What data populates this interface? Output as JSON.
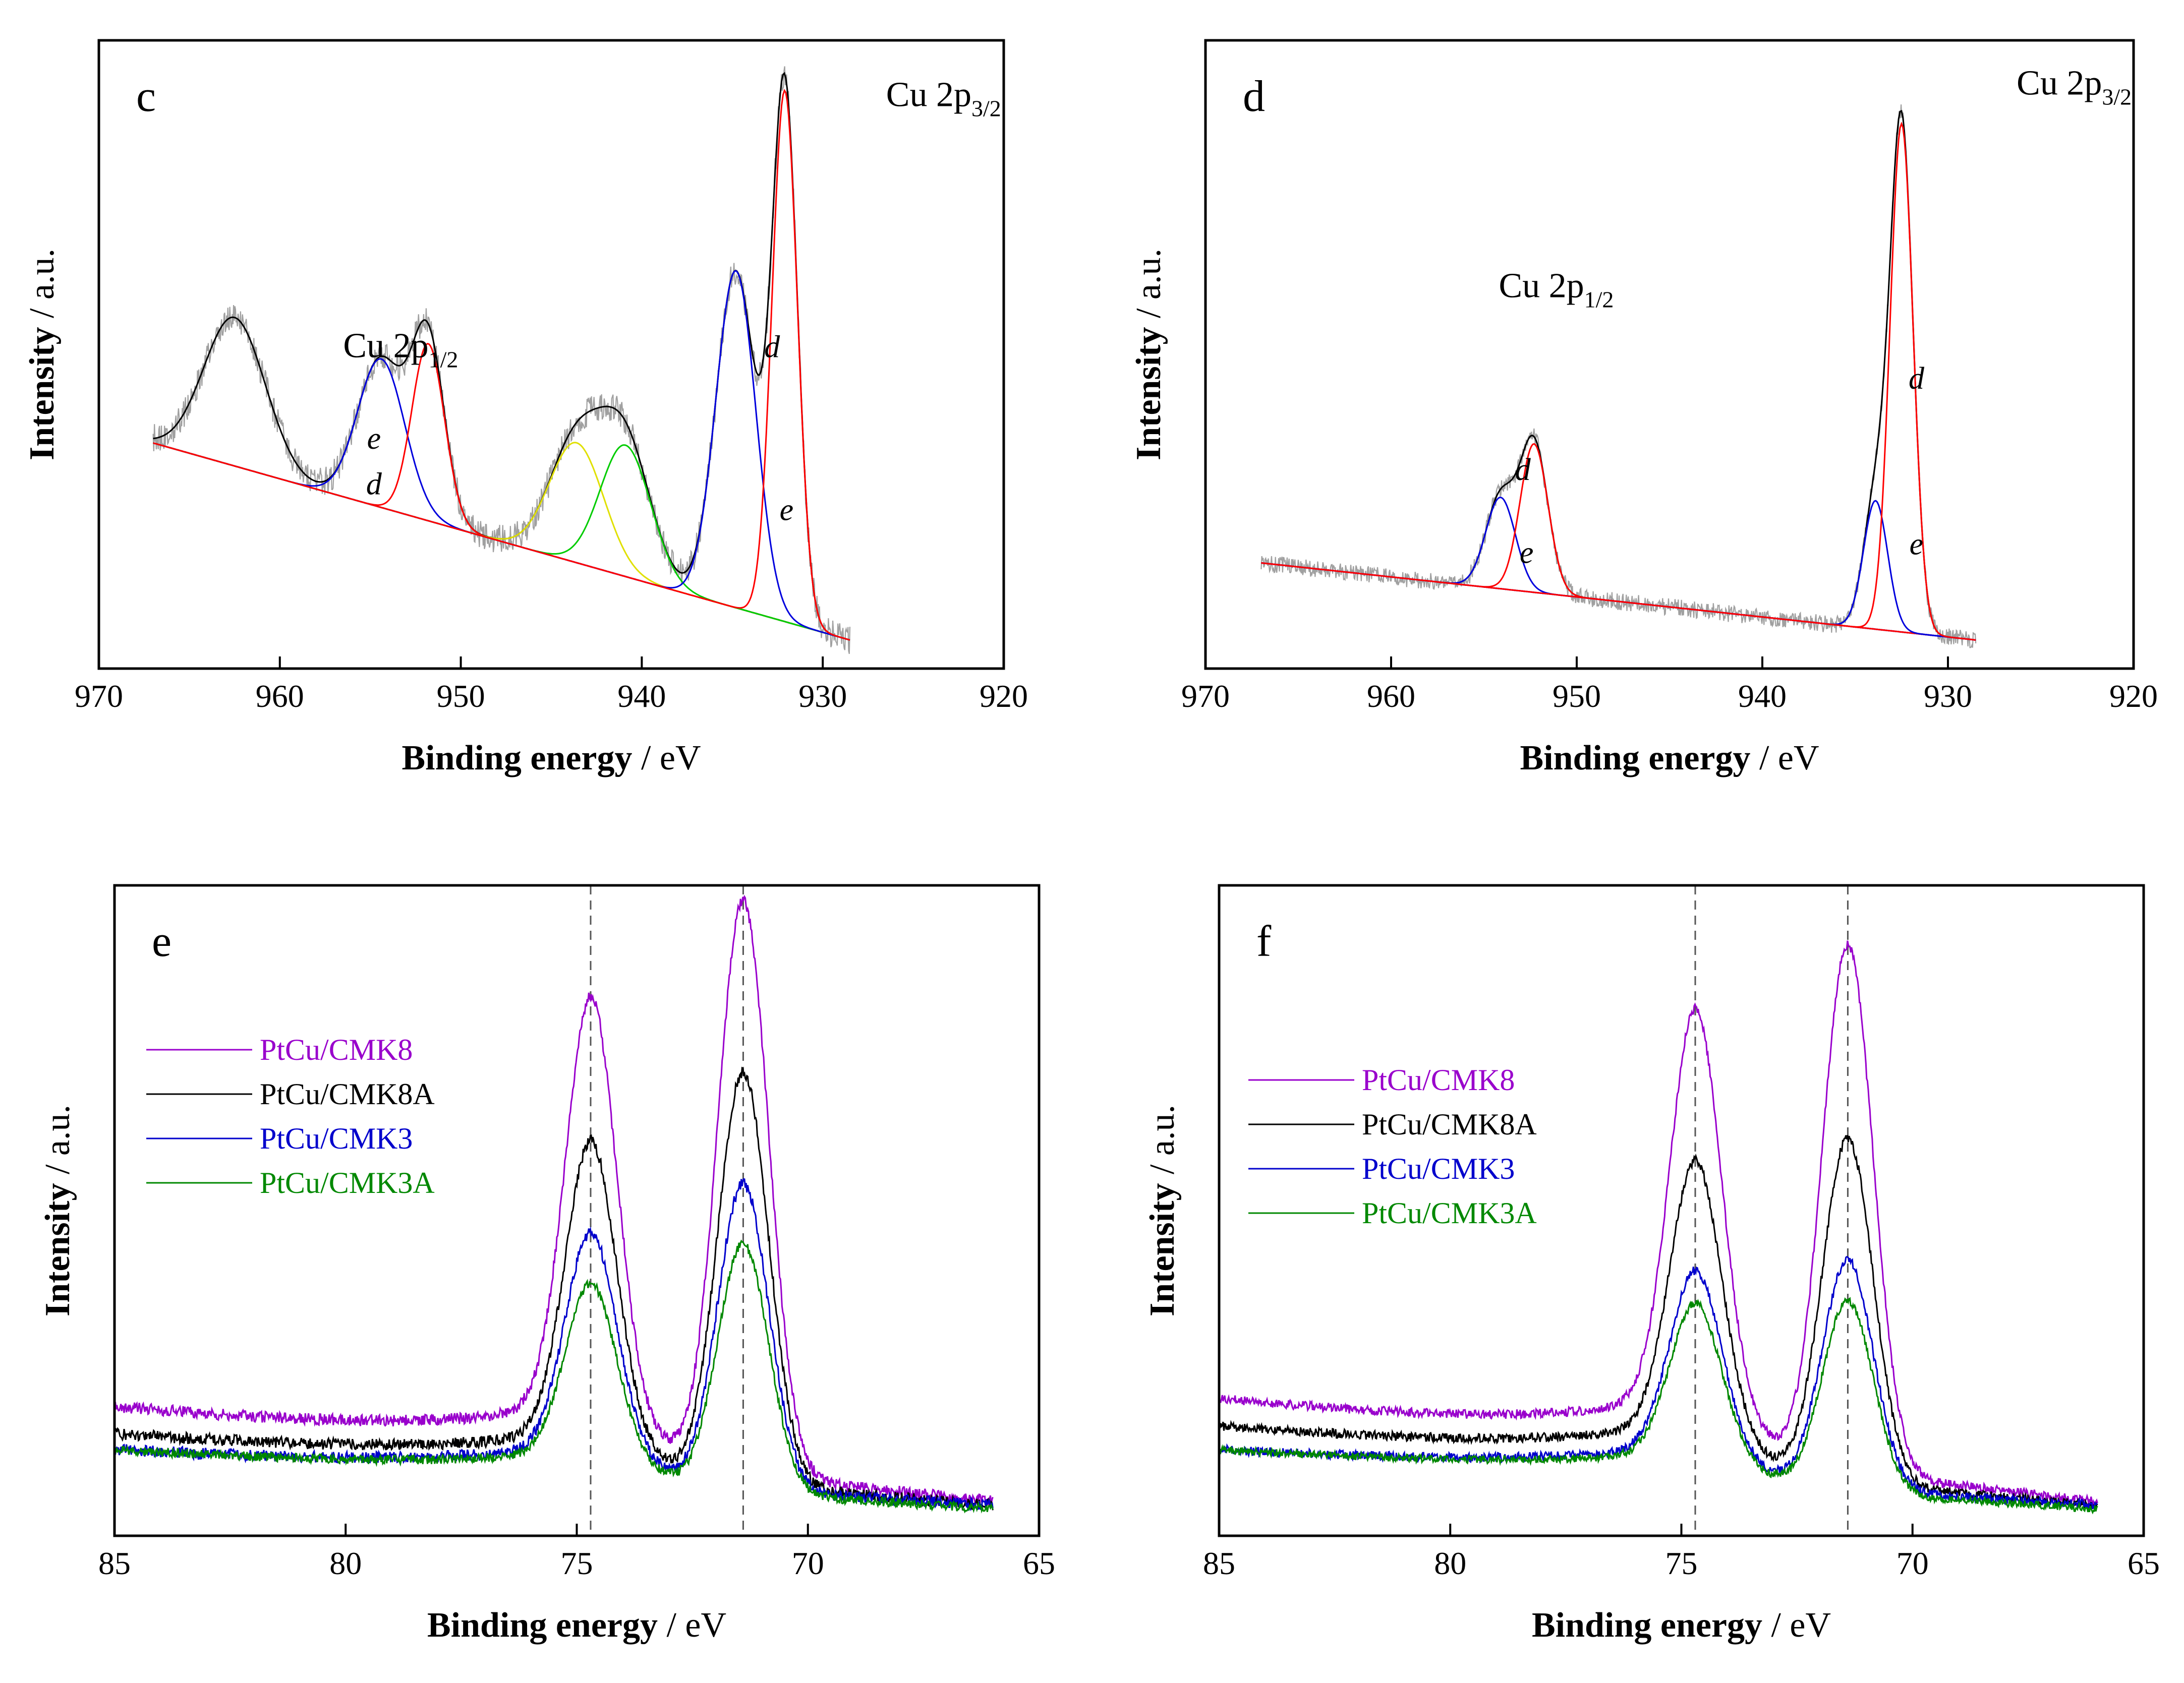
{
  "chart_data": [
    {
      "panel": "c",
      "type": "line",
      "xlabel_bold": "Binding energy",
      "xlabel_rest": " / eV",
      "ylabel_bold": "Intensity",
      "ylabel_rest": " / a.u.",
      "xlim": [
        970,
        920
      ],
      "xticks": [
        "970",
        "960",
        "950",
        "940",
        "930",
        "920"
      ],
      "peak_labels": [
        {
          "base": "Cu 2p",
          "sub": "1/2",
          "x": 956.5,
          "y": 1.04
        },
        {
          "base": "Cu 2p",
          "sub": "3/2",
          "x": 926.5,
          "y": 1.92
        }
      ],
      "series": [
        {
          "name": "raw",
          "color": "#a0a0a0",
          "noise": 0.05,
          "base": [
            967,
            0.74,
            928.5,
            0.05
          ],
          "peaks": [
            [
              962.5,
              0.52,
              1.7
            ],
            [
              954.4,
              0.52,
              1.3
            ],
            [
              951.8,
              0.62,
              0.9
            ],
            [
              943.6,
              0.42,
              1.5
            ],
            [
              940.9,
              0.46,
              1.4
            ],
            [
              934.8,
              1.18,
              1.1
            ],
            [
              932.1,
              1.86,
              0.7
            ]
          ]
        },
        {
          "name": "envelope",
          "color": "#000000",
          "base": [
            967,
            0.74,
            928.5,
            0.05
          ],
          "peaks": [
            [
              962.5,
              0.52,
              1.7
            ],
            [
              954.4,
              0.52,
              1.3
            ],
            [
              951.8,
              0.62,
              0.9
            ],
            [
              943.6,
              0.42,
              1.5
            ],
            [
              940.9,
              0.46,
              1.4
            ],
            [
              934.8,
              1.18,
              1.1
            ],
            [
              932.1,
              1.86,
              0.7
            ]
          ]
        },
        {
          "name": "baseline",
          "color": "#0000cc",
          "base": [
            967,
            0.74,
            928.5,
            0.05
          ],
          "peaks": []
        },
        {
          "name": "Cu2p1/2 e",
          "color": "#0000dd",
          "base": [
            967,
            0.74,
            928.5,
            0.05
          ],
          "peaks": [
            [
              954.4,
              0.52,
              1.3
            ]
          ]
        },
        {
          "name": "Cu2p1/2 d",
          "color": "#ff0000",
          "base": [
            967,
            0.74,
            928.5,
            0.05
          ],
          "peaks": [
            [
              951.8,
              0.62,
              0.9
            ]
          ]
        },
        {
          "name": "satellite 1",
          "color": "#e0e000",
          "base": [
            967,
            0.74,
            928.5,
            0.05
          ],
          "peaks": [
            [
              943.6,
              0.42,
              1.5
            ]
          ]
        },
        {
          "name": "satellite 2",
          "color": "#00cc00",
          "base": [
            967,
            0.74,
            928.5,
            0.05
          ],
          "peaks": [
            [
              940.9,
              0.46,
              1.4
            ]
          ]
        },
        {
          "name": "Cu2p3/2 e",
          "color": "#0000dd",
          "base": [
            967,
            0.74,
            928.5,
            0.05
          ],
          "peaks": [
            [
              934.8,
              1.18,
              1.1
            ]
          ]
        },
        {
          "name": "Cu2p3/2 d",
          "color": "#ff0000",
          "base": [
            967,
            0.74,
            928.5,
            0.05
          ],
          "peaks": [
            [
              932.1,
              1.86,
              0.7
            ]
          ]
        }
      ],
      "component_labels": [
        {
          "text": "e",
          "x": 954.8,
          "y": 0.72
        },
        {
          "text": "d",
          "x": 954.8,
          "y": 0.56
        },
        {
          "text": "d",
          "x": 932.8,
          "y": 1.04
        },
        {
          "text": "e",
          "x": 932.0,
          "y": 0.47
        }
      ]
    },
    {
      "panel": "d",
      "type": "line",
      "xlabel_bold": "Binding energy",
      "xlabel_rest": " / eV",
      "ylabel_bold": "Intensity",
      "ylabel_rest": " / a.u.",
      "xlim": [
        970,
        920
      ],
      "xticks": [
        "970",
        "960",
        "950",
        "940",
        "930",
        "920"
      ],
      "peak_labels": [
        {
          "base": "Cu 2p",
          "sub": "1/2",
          "x": 954.2,
          "y": 1.25
        },
        {
          "base": "Cu 2p",
          "sub": "3/2",
          "x": 926.3,
          "y": 1.96
        }
      ],
      "series": [
        {
          "name": "raw",
          "color": "#a0a0a0",
          "noise": 0.03,
          "base": [
            967,
            0.32,
            928.5,
            0.05
          ],
          "peaks": [
            [
              954.1,
              0.32,
              0.8
            ],
            [
              952.3,
              0.52,
              0.75
            ],
            [
              933.9,
              0.45,
              0.65
            ],
            [
              932.5,
              1.78,
              0.62
            ]
          ]
        },
        {
          "name": "envelope",
          "color": "#000000",
          "base": [
            967,
            0.32,
            928.5,
            0.05
          ],
          "peaks": [
            [
              954.1,
              0.32,
              0.8
            ],
            [
              952.3,
              0.52,
              0.75
            ],
            [
              933.9,
              0.45,
              0.65
            ],
            [
              932.5,
              1.78,
              0.62
            ]
          ]
        },
        {
          "name": "baseline",
          "color": "#0000cc",
          "base": [
            967,
            0.32,
            928.5,
            0.05
          ],
          "peaks": []
        },
        {
          "name": "Cu2p1/2 e",
          "color": "#0000dd",
          "base": [
            967,
            0.32,
            928.5,
            0.05
          ],
          "peaks": [
            [
              954.1,
              0.32,
              0.8
            ]
          ]
        },
        {
          "name": "Cu2p1/2 d",
          "color": "#ff0000",
          "base": [
            967,
            0.32,
            928.5,
            0.05
          ],
          "peaks": [
            [
              952.3,
              0.52,
              0.75
            ]
          ]
        },
        {
          "name": "Cu2p3/2 e",
          "color": "#0000dd",
          "base": [
            967,
            0.32,
            928.5,
            0.05
          ],
          "peaks": [
            [
              933.9,
              0.45,
              0.65
            ]
          ]
        },
        {
          "name": "Cu2p3/2 d",
          "color": "#ff0000",
          "base": [
            967,
            0.32,
            928.5,
            0.05
          ],
          "peaks": [
            [
              932.5,
              1.78,
              0.62
            ]
          ]
        }
      ],
      "component_labels": [
        {
          "text": "d",
          "x": 952.9,
          "y": 0.61
        },
        {
          "text": "e",
          "x": 952.7,
          "y": 0.32
        },
        {
          "text": "d",
          "x": 931.7,
          "y": 0.93
        },
        {
          "text": "e",
          "x": 931.7,
          "y": 0.35
        }
      ]
    },
    {
      "panel": "e",
      "type": "line",
      "xlabel_bold": "Binding energy",
      "xlabel_rest": " / eV",
      "ylabel_bold": "Intensity",
      "ylabel_rest": " / a.u.",
      "xlim": [
        85,
        65
      ],
      "xticks": [
        "85",
        "80",
        "75",
        "70",
        "65"
      ],
      "reference_lines": [
        74.7,
        71.4
      ],
      "legend": [
        {
          "label": "PtCu/CMK8",
          "color": "#9900cc"
        },
        {
          "label": "PtCu/CMK8A",
          "color": "#000000"
        },
        {
          "label": "PtCu/CMK3",
          "color": "#0000cc"
        },
        {
          "label": "PtCu/CMK3A",
          "color": "#008800"
        }
      ],
      "series": [
        {
          "name": "PtCu/CMK8",
          "color": "#9900cc",
          "noise": 0.015,
          "base": [
            85,
            0.28,
            66,
            0.04
          ],
          "tail": [
            0.16,
            3.5
          ],
          "peaks": [
            [
              74.7,
              1.05,
              0.55
            ],
            [
              71.4,
              1.5,
              0.55
            ]
          ]
        },
        {
          "name": "PtCu/CMK8A",
          "color": "#000000",
          "noise": 0.015,
          "base": [
            85,
            0.21,
            66,
            0.03
          ],
          "tail": [
            0.12,
            3.5
          ],
          "peaks": [
            [
              74.7,
              0.75,
              0.55
            ],
            [
              71.4,
              1.08,
              0.55
            ]
          ]
        },
        {
          "name": "PtCu/CMK3",
          "color": "#0000cc",
          "noise": 0.015,
          "base": [
            85,
            0.17,
            66,
            0.03
          ],
          "tail": [
            0.1,
            3.5
          ],
          "peaks": [
            [
              74.7,
              0.55,
              0.55
            ],
            [
              71.4,
              0.8,
              0.55
            ]
          ]
        },
        {
          "name": "PtCu/CMK3A",
          "color": "#008800",
          "noise": 0.012,
          "base": [
            85,
            0.17,
            66,
            0.02
          ],
          "tail": [
            0.09,
            3.5
          ],
          "peaks": [
            [
              74.7,
              0.43,
              0.55
            ],
            [
              71.4,
              0.65,
              0.55
            ]
          ]
        }
      ]
    },
    {
      "panel": "f",
      "type": "line",
      "xlabel_bold": "Binding energy",
      "xlabel_rest": " / eV",
      "ylabel_bold": "Intensity",
      "ylabel_rest": " / a.u.",
      "xlim": [
        85,
        65
      ],
      "xticks": [
        "85",
        "80",
        "75",
        "70",
        "65"
      ],
      "reference_lines": [
        74.7,
        71.4
      ],
      "legend": [
        {
          "label": "PtCu/CMK8",
          "color": "#9900cc"
        },
        {
          "label": "PtCu/CMK8A",
          "color": "#000000"
        },
        {
          "label": "PtCu/CMK3",
          "color": "#0000cc"
        },
        {
          "label": "PtCu/CMK3A",
          "color": "#008800"
        }
      ],
      "series": [
        {
          "name": "PtCu/CMK8",
          "color": "#9900cc",
          "noise": 0.012,
          "base": [
            85,
            0.3,
            66,
            0.04
          ],
          "tail": [
            0.17,
            3.5
          ],
          "peaks": [
            [
              74.7,
              1.0,
              0.55
            ],
            [
              71.4,
              1.38,
              0.55
            ]
          ]
        },
        {
          "name": "PtCu/CMK8A",
          "color": "#000000",
          "noise": 0.012,
          "base": [
            85,
            0.23,
            66,
            0.03
          ],
          "tail": [
            0.13,
            3.5
          ],
          "peaks": [
            [
              74.7,
              0.68,
              0.55
            ],
            [
              71.4,
              0.9,
              0.55
            ]
          ]
        },
        {
          "name": "PtCu/CMK3",
          "color": "#0000cc",
          "noise": 0.012,
          "base": [
            85,
            0.17,
            66,
            0.03
          ],
          "tail": [
            0.1,
            3.5
          ],
          "peaks": [
            [
              74.7,
              0.45,
              0.55
            ],
            [
              71.4,
              0.6,
              0.55
            ]
          ]
        },
        {
          "name": "PtCu/CMK3A",
          "color": "#008800",
          "noise": 0.01,
          "base": [
            85,
            0.17,
            66,
            0.02
          ],
          "tail": [
            0.09,
            3.5
          ],
          "peaks": [
            [
              74.7,
              0.38,
              0.55
            ],
            [
              71.4,
              0.5,
              0.55
            ]
          ]
        }
      ]
    }
  ]
}
